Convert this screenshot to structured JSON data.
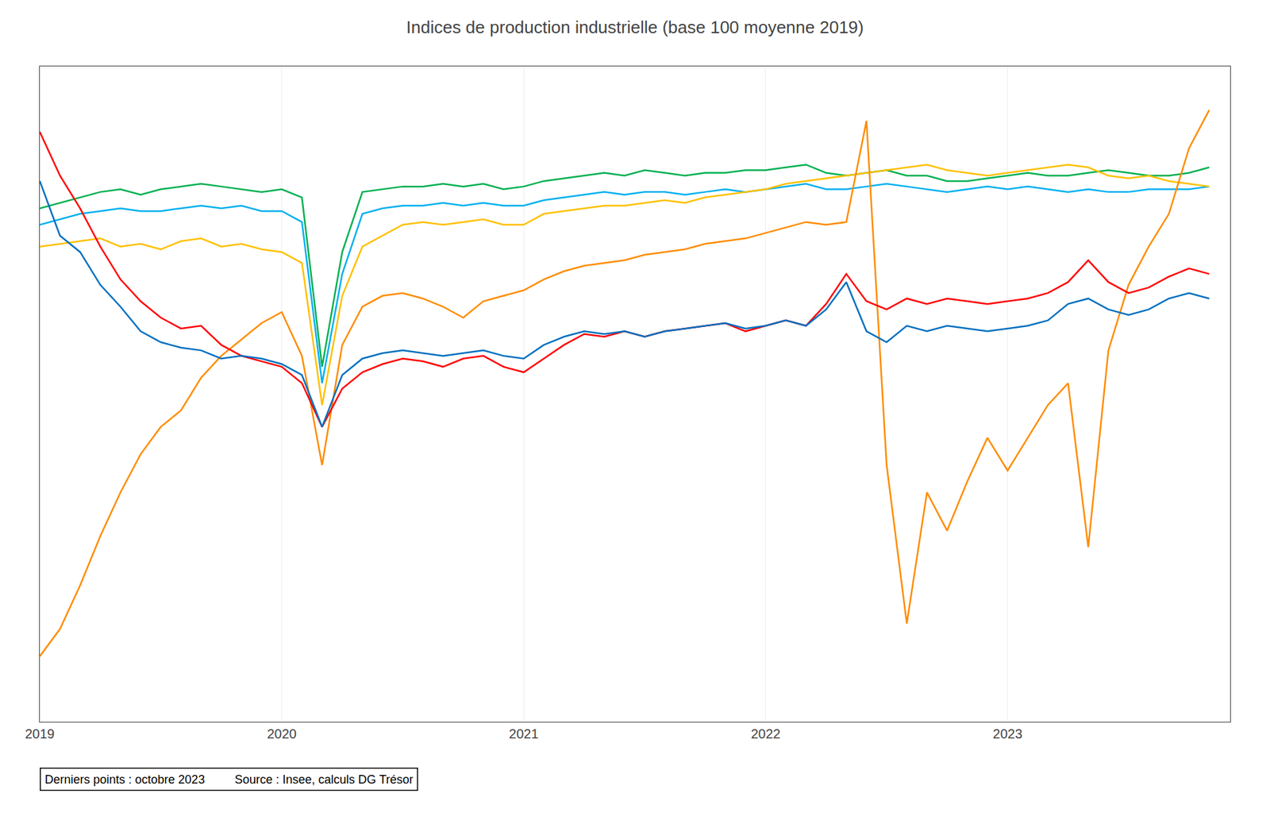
{
  "chart_data": {
    "type": "line",
    "title": "Indices de production industrielle (base 100 moyenne 2019)",
    "annotations": [
      "Derniers points : octobre 2023         Source : Insee, calculs DG Trésor"
    ],
    "x": [
      2019.0,
      2019.0833333333333,
      2019.1666666666667,
      2019.25,
      2019.3333333333333,
      2019.4166666666667,
      2019.5,
      2019.5833333333333,
      2019.6666666666667,
      2019.75,
      2019.8333333333333,
      2019.9166666666667,
      2020.0,
      2020.0833333333333,
      2020.1666666666667,
      2020.25,
      2020.3333333333333,
      2020.4166666666667,
      2020.5,
      2020.5833333333333,
      2020.6666666666667,
      2020.75,
      2020.8333333333333,
      2020.9166666666667,
      2021.0,
      2021.0833333333333,
      2021.1666666666667,
      2021.25,
      2021.3333333333333,
      2021.4166666666667,
      2021.5,
      2021.5833333333333,
      2021.6666666666667,
      2021.75,
      2021.8333333333333,
      2021.9166666666667,
      2022.0,
      2022.0833333333333,
      2022.1666666666667,
      2022.25,
      2022.3333333333333,
      2022.4166666666667,
      2022.5,
      2022.5833333333333,
      2022.6666666666667,
      2022.75,
      2022.8333333333333,
      2022.9166666666667,
      2023.0,
      2023.0833333333333,
      2023.1666666666667,
      2023.25,
      2023.3333333333333,
      2023.4166666666667,
      2023.5,
      2023.5833333333333,
      2023.6666666666667,
      2023.75,
      2023.8333333333333
    ],
    "series": [
      {
        "color": "#00B050",
        "values": [
          104.0,
          105.0,
          106.0,
          107.0,
          107.5,
          106.5,
          107.5,
          108.0,
          108.5,
          108.0,
          107.5,
          107.0,
          107.5,
          106.0,
          75.0,
          96.0,
          107.0,
          107.5,
          108.0,
          108.0,
          108.5,
          108.0,
          108.5,
          107.5,
          108.0,
          109.0,
          109.5,
          110.0,
          110.5,
          110.0,
          111.0,
          110.5,
          110.0,
          110.5,
          110.5,
          111.0,
          111.0,
          111.5,
          112.0,
          110.5,
          110.0,
          110.5,
          111.0,
          110.0,
          110.0,
          109.0,
          109.0,
          109.5,
          110.0,
          110.5,
          110.0,
          110.0,
          110.5,
          111.0,
          110.5,
          110.0,
          110.0,
          110.5,
          111.5
        ]
      },
      {
        "color": "#00B0F0",
        "values": [
          101.0,
          102.0,
          103.0,
          103.5,
          104.0,
          103.5,
          103.5,
          104.0,
          104.5,
          104.0,
          104.5,
          103.5,
          103.5,
          101.5,
          72.0,
          92.0,
          103.0,
          104.0,
          104.5,
          104.5,
          105.0,
          104.5,
          105.0,
          104.5,
          104.5,
          105.5,
          106.0,
          106.5,
          107.0,
          106.5,
          107.0,
          107.0,
          106.5,
          107.0,
          107.5,
          107.0,
          107.5,
          108.0,
          108.5,
          107.5,
          107.5,
          108.0,
          108.5,
          108.0,
          107.5,
          107.0,
          107.5,
          108.0,
          107.5,
          108.0,
          107.5,
          107.0,
          107.5,
          107.0,
          107.0,
          107.5,
          107.5,
          107.5,
          108.0
        ]
      },
      {
        "color": "#FFC000",
        "values": [
          97.0,
          97.5,
          98.0,
          98.5,
          97.0,
          97.5,
          96.5,
          98.0,
          98.5,
          97.0,
          97.5,
          96.5,
          96.0,
          94.0,
          68.0,
          88.0,
          97.0,
          99.0,
          101.0,
          101.5,
          101.0,
          101.5,
          102.0,
          101.0,
          101.0,
          103.0,
          103.5,
          104.0,
          104.5,
          104.5,
          105.0,
          105.5,
          105.0,
          106.0,
          106.5,
          107.0,
          107.5,
          108.5,
          109.0,
          109.5,
          110.0,
          110.5,
          111.0,
          111.5,
          112.0,
          111.0,
          110.5,
          110.0,
          110.5,
          111.0,
          111.5,
          112.0,
          111.5,
          110.0,
          109.5,
          110.0,
          109.0,
          108.5,
          108.0
        ]
      },
      {
        "color": "#FF8C00",
        "values": [
          22.0,
          27.0,
          35.0,
          44.0,
          52.0,
          59.0,
          64.0,
          67.0,
          73.0,
          77.0,
          80.0,
          83.0,
          85.0,
          77.0,
          57.0,
          79.0,
          86.0,
          88.0,
          88.5,
          87.5,
          86.0,
          84.0,
          87.0,
          88.0,
          89.0,
          91.0,
          92.5,
          93.5,
          94.0,
          94.5,
          95.5,
          96.0,
          96.5,
          97.5,
          98.0,
          98.5,
          99.5,
          100.5,
          101.5,
          101.0,
          101.5,
          120.0,
          57.0,
          28.0,
          52.0,
          45.0,
          54.0,
          62.0,
          56.0,
          62.0,
          68.0,
          72.0,
          42.0,
          78.0,
          90.0,
          97.0,
          103.0,
          115.0,
          122.0
        ]
      },
      {
        "color": "#FF0000",
        "values": [
          118.0,
          110.0,
          104.0,
          97.0,
          91.0,
          87.0,
          84.0,
          82.0,
          82.5,
          79.0,
          77.0,
          76.0,
          75.0,
          72.0,
          64.0,
          71.0,
          74.0,
          75.5,
          76.5,
          76.0,
          75.0,
          76.5,
          77.0,
          75.0,
          74.0,
          76.5,
          79.0,
          81.0,
          80.5,
          81.5,
          80.5,
          81.5,
          82.0,
          82.5,
          83.0,
          81.5,
          82.5,
          83.5,
          82.5,
          86.5,
          92.0,
          87.0,
          85.5,
          87.5,
          86.5,
          87.5,
          87.0,
          86.5,
          87.0,
          87.5,
          88.5,
          90.5,
          94.5,
          90.5,
          88.5,
          89.5,
          91.5,
          93.0,
          92.0
        ]
      },
      {
        "color": "#0070C0",
        "values": [
          109.0,
          99.0,
          96.0,
          90.0,
          86.0,
          81.5,
          79.5,
          78.5,
          78.0,
          76.5,
          77.0,
          76.5,
          75.5,
          73.5,
          64.0,
          73.5,
          76.5,
          77.5,
          78.0,
          77.5,
          77.0,
          77.5,
          78.0,
          77.0,
          76.5,
          79.0,
          80.5,
          81.5,
          81.0,
          81.5,
          80.5,
          81.5,
          82.0,
          82.5,
          83.0,
          82.0,
          82.5,
          83.5,
          82.5,
          85.5,
          90.5,
          81.5,
          79.5,
          82.5,
          81.5,
          82.5,
          82.0,
          81.5,
          82.0,
          82.5,
          83.5,
          86.5,
          87.5,
          85.5,
          84.5,
          85.5,
          87.5,
          88.5,
          87.5
        ]
      }
    ],
    "xlim": [
      2019.0,
      2023.92
    ],
    "xticks": [
      2019,
      2020,
      2021,
      2022,
      2023
    ],
    "ylim": [
      10,
      130
    ],
    "yticks": [],
    "grid": true,
    "tick_labels": "x"
  }
}
